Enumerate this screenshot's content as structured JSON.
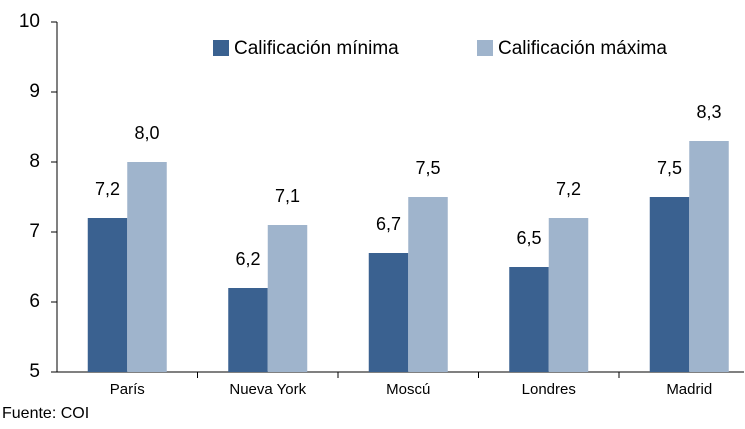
{
  "chart_data": {
    "type": "bar",
    "categories": [
      "París",
      "Nueva York",
      "Moscú",
      "Londres",
      "Madrid"
    ],
    "series": [
      {
        "name": "Calificación mínima",
        "color": "#3a6190",
        "values": [
          7.2,
          6.2,
          6.7,
          6.5,
          7.5
        ],
        "value_labels": [
          "7,2",
          "6,2",
          "6,7",
          "6,5",
          "7,5"
        ]
      },
      {
        "name": "Calificación máxima",
        "color": "#9fb4cc",
        "values": [
          8.0,
          7.1,
          7.5,
          7.2,
          8.3
        ],
        "value_labels": [
          "8,0",
          "7,1",
          "7,5",
          "7,2",
          "8,3"
        ]
      }
    ],
    "ylim": [
      5,
      10
    ],
    "yticks": [
      5,
      6,
      7,
      8,
      9,
      10
    ],
    "source": "Fuente: COI"
  }
}
